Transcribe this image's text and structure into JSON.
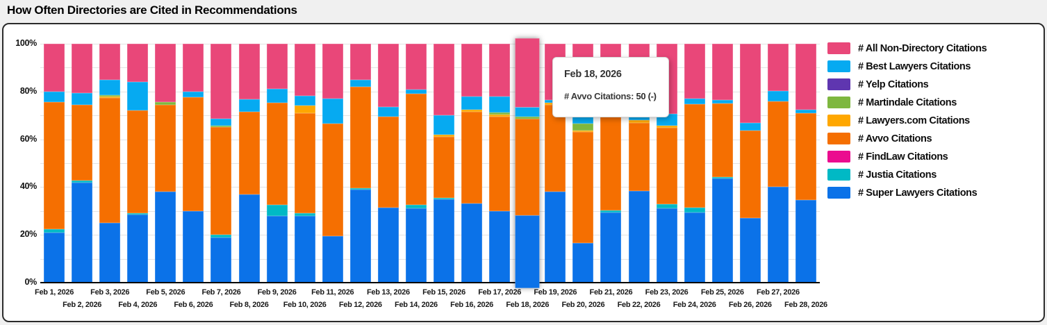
{
  "page": {
    "title": "How Often Directories are Cited in Recommendations"
  },
  "y_axis": {
    "ticks": [
      "100%",
      "80%",
      "60%",
      "40%",
      "20%",
      "0%"
    ]
  },
  "tooltip": {
    "date": "Feb 18, 2026",
    "label": "# Avvo Citations:",
    "value": "50 (-)"
  },
  "chart_data": {
    "type": "bar",
    "stacked": true,
    "percent_stacked": true,
    "title": "How Often Directories are Cited in Recommendations",
    "xlabel": "",
    "ylabel": "",
    "ylim": [
      0,
      100
    ],
    "grid": "horizontal, 10% steps",
    "legend_position": "right",
    "legend_order": "reverse_of_series",
    "highlighted_category": "Feb 18, 2026",
    "highlighted_index": 17,
    "categories": [
      "Feb 1, 2026",
      "Feb 2, 2026",
      "Feb 3, 2026",
      "Feb 4, 2026",
      "Feb 5, 2026",
      "Feb 6, 2026",
      "Feb 7, 2026",
      "Feb 8, 2026",
      "Feb 9, 2026",
      "Feb 10, 2026",
      "Feb 11, 2026",
      "Feb 12, 2026",
      "Feb 13, 2026",
      "Feb 14, 2026",
      "Feb 15, 2026",
      "Feb 16, 2026",
      "Feb 17, 2026",
      "Feb 18, 2026",
      "Feb 19, 2026",
      "Feb 20, 2026",
      "Feb 21, 2026",
      "Feb 22, 2026",
      "Feb 23, 2026",
      "Feb 24, 2026",
      "Feb 25, 2026",
      "Feb 26, 2026",
      "Feb 27, 2026",
      "Feb 28, 2026"
    ],
    "series": [
      {
        "name": "# Super Lawyers Citations",
        "color": "#0B72E8",
        "values": [
          21,
          42,
          25,
          28.5,
          38,
          30,
          19,
          37,
          28,
          28,
          19.5,
          39,
          31.5,
          31,
          35,
          33,
          30,
          29,
          38,
          16.5,
          29.5,
          38.5,
          31,
          29.5,
          43.5,
          27,
          40,
          34.5
        ]
      },
      {
        "name": "# Justia Citations",
        "color": "#00B9C5",
        "values": [
          1.5,
          0.7,
          0,
          0.7,
          0,
          0,
          1,
          0,
          4.5,
          1,
          0,
          0.5,
          0,
          1.5,
          0.5,
          0,
          0,
          0,
          0,
          0,
          0.7,
          0,
          2,
          2,
          0.8,
          0,
          0,
          0
        ]
      },
      {
        "name": "# FindLaw Citations",
        "color": "#EB0C8F",
        "values": [
          0,
          0,
          0,
          0,
          0,
          0,
          0,
          0,
          0,
          0,
          0,
          0,
          0,
          0,
          0,
          0,
          0,
          0,
          0,
          0,
          0,
          0,
          0,
          0,
          0,
          0,
          0,
          0
        ]
      },
      {
        "name": "# Avvo Citations",
        "color": "#F56F01",
        "values": [
          53,
          31.8,
          52.3,
          42.8,
          36.5,
          47.5,
          45,
          34.5,
          42.8,
          41.8,
          47,
          42.5,
          38,
          46.5,
          25.5,
          38.5,
          39.5,
          38.7,
          36.5,
          46.5,
          41.5,
          28.5,
          31.7,
          43.3,
          30.7,
          36.6,
          36,
          36.5
        ]
      },
      {
        "name": "# Lawyers.com Citations",
        "color": "#FFA700",
        "values": [
          0,
          0,
          0.6,
          0,
          0,
          0,
          0,
          0,
          0,
          3.4,
          0,
          0,
          0,
          0,
          1,
          1,
          0.8,
          0,
          0.8,
          0.7,
          0,
          1,
          1,
          0,
          0,
          0,
          0,
          0
        ]
      },
      {
        "name": "# Martindale Citations",
        "color": "#7EB73F",
        "values": [
          0,
          0,
          0.6,
          0,
          1,
          0,
          0.8,
          0,
          0,
          0,
          0,
          0,
          0,
          0,
          0,
          0,
          1,
          0.8,
          0,
          3,
          0,
          0,
          0,
          0,
          0,
          0,
          0,
          0
        ]
      },
      {
        "name": "# Yelp Citations",
        "color": "#5F36B0",
        "values": [
          0,
          0,
          0,
          0,
          0,
          0,
          0,
          0,
          0,
          0,
          0,
          0,
          0,
          0,
          0,
          0,
          0,
          0,
          0,
          0,
          0,
          0,
          0,
          0,
          0,
          0,
          0,
          0
        ]
      },
      {
        "name": "# Best Lawyers Citations",
        "color": "#06AAF1",
        "values": [
          4.5,
          5,
          6.5,
          12,
          0,
          2.5,
          2.7,
          5.3,
          5.8,
          3.9,
          10.5,
          3,
          4,
          1.8,
          8,
          5.3,
          6.5,
          4,
          1.2,
          3,
          3,
          2,
          5,
          2.3,
          1.5,
          3.4,
          4.3,
          1.4
        ]
      },
      {
        "name": "# All Non-Directory Citations",
        "color": "#E94779",
        "values": [
          20,
          20.5,
          15,
          16,
          24.5,
          20,
          31.5,
          23.2,
          18.9,
          21.9,
          23,
          15,
          26.5,
          19.2,
          30,
          22.2,
          22.2,
          27.5,
          23.5,
          30.3,
          25.3,
          30,
          29.3,
          22.9,
          23.5,
          33,
          19.7,
          27.6
        ]
      }
    ]
  }
}
